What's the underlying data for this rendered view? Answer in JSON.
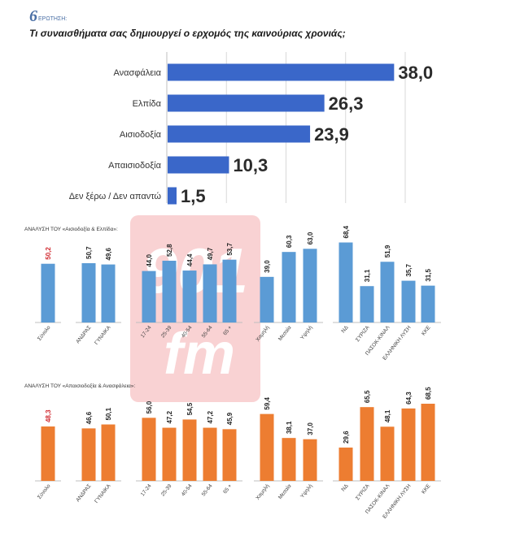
{
  "header": {
    "badge_number": "6",
    "badge_word": "ΕΡΩΤΗΣΗ:",
    "question": "Τι συναισθήματα σας δημιουργεί ο ερχομός της καινούριας χρονιάς;"
  },
  "watermark": {
    "number": "901",
    "suffix": "fm"
  },
  "colors": {
    "main_bar": "#3a67c9",
    "blue_bar": "#5b9bd5",
    "orange_bar": "#ed7d31",
    "red_label": "#d0282e",
    "watermark": "#e8353b"
  },
  "chart_data": [
    {
      "type": "bar",
      "orientation": "horizontal",
      "categories": [
        "Ανασφάλεια",
        "Ελπίδα",
        "Αισιοδοξία",
        "Απαισιοδοξία",
        "Δεν ξέρω / Δεν απαντώ"
      ],
      "values": [
        38.0,
        26.3,
        23.9,
        10.3,
        1.5
      ],
      "value_labels": [
        "38,0",
        "26,3",
        "23,9",
        "10,3",
        "1,5"
      ],
      "xlim": [
        0,
        40
      ],
      "grid": true
    },
    {
      "type": "bar",
      "title": "ΑΝΑΛΥΣΗ ΤΟΥ «Αισιοδοξία & Ελπίδα»:",
      "categories": [
        "Σύνολο",
        "ΑΝΔΡΑΣ",
        "ΓΥΝΑΙΚΑ",
        "17-24",
        "25-39",
        "40-54",
        "55-64",
        "65 +",
        "Χαμηλή",
        "Μεσαία",
        "Υψηλή",
        "ΝΔ",
        "ΣΥΡΙΖΑ",
        "ΠΑΣΟΚ-ΚΙΝΑΛ",
        "ΕΛΛΗΝΙΚΗ ΛΥΣΗ",
        "ΚΚΕ"
      ],
      "groups": [
        [
          0
        ],
        [
          1,
          2
        ],
        [
          3,
          4,
          5,
          6,
          7
        ],
        [
          8,
          9,
          10
        ],
        [
          11,
          12,
          13,
          14,
          15
        ]
      ],
      "values": [
        50.2,
        50.7,
        49.6,
        44.0,
        52.8,
        44.4,
        49.7,
        53.7,
        39.0,
        60.3,
        63.0,
        68.4,
        31.1,
        51.9,
        35.7,
        31.5
      ],
      "value_labels": [
        "50,2",
        "50,7",
        "49,6",
        "44,0",
        "52,8",
        "44,4",
        "49,7",
        "53,7",
        "39,0",
        "60,3",
        "63,0",
        "68,4",
        "31,1",
        "51,9",
        "35,7",
        "31,5"
      ],
      "highlight_index": 0,
      "ylim": [
        0,
        75
      ]
    },
    {
      "type": "bar",
      "title": "ΑΝΑΛΥΣΗ ΤΟΥ «Απαισιοδοξία & Ανασφάλεια»:",
      "categories": [
        "Σύνολο",
        "ΑΝΔΡΑΣ",
        "ΓΥΝΑΙΚΑ",
        "17-24",
        "25-39",
        "40-54",
        "55-64",
        "65 +",
        "Χαμηλή",
        "Μεσαία",
        "Υψηλή",
        "ΝΔ",
        "ΣΥΡΙΖΑ",
        "ΠΑΣΟΚ-ΚΙΝΑΛ",
        "ΕΛΛΗΝΙΚΗ ΛΥΣΗ",
        "ΚΚΕ"
      ],
      "groups": [
        [
          0
        ],
        [
          1,
          2
        ],
        [
          3,
          4,
          5,
          6,
          7
        ],
        [
          8,
          9,
          10
        ],
        [
          11,
          12,
          13,
          14,
          15
        ]
      ],
      "values": [
        48.3,
        46.6,
        50.1,
        56.0,
        47.2,
        54.5,
        47.2,
        45.9,
        59.4,
        38.1,
        37.0,
        29.6,
        65.5,
        48.1,
        64.3,
        68.5
      ],
      "value_labels": [
        "48,3",
        "46,6",
        "50,1",
        "56,0",
        "47,2",
        "54,5",
        "47,2",
        "45,9",
        "59,4",
        "38,1",
        "37,0",
        "29,6",
        "65,5",
        "48,1",
        "64,3",
        "68,5"
      ],
      "highlight_index": 0,
      "ylim": [
        0,
        75
      ]
    }
  ]
}
